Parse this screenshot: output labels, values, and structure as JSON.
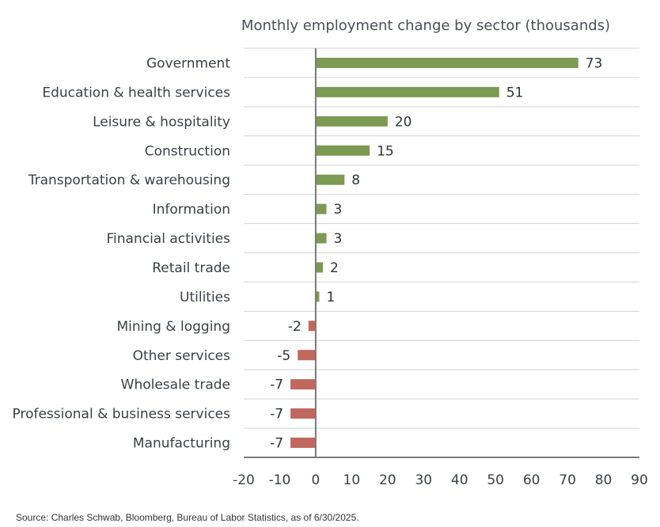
{
  "chart_data": {
    "type": "bar",
    "orientation": "horizontal",
    "title": "Monthly employment change by sector (thousands)",
    "categories": [
      "Government",
      "Education & health services",
      "Leisure & hospitality",
      "Construction",
      "Transportation & warehousing",
      "Information",
      "Financial activities",
      "Retail trade",
      "Utilities",
      "Mining & logging",
      "Other services",
      "Wholesale trade",
      "Professional & business services",
      "Manufacturing"
    ],
    "values": [
      73,
      51,
      20,
      15,
      8,
      3,
      3,
      2,
      1,
      -2,
      -5,
      -7,
      -7,
      -7
    ],
    "xlim": [
      -20,
      90
    ],
    "xticks": [
      -20,
      -10,
      0,
      10,
      20,
      30,
      40,
      50,
      60,
      70,
      80,
      90
    ],
    "xlabel": "",
    "ylabel": "",
    "grid": "horizontal",
    "legend": "none",
    "colors": {
      "positive": "#7c9a52",
      "negative": "#c0675e"
    }
  },
  "source": "Source: Charles Schwab, Bloomberg, Bureau of Labor Statistics, as of 6/30/2025."
}
